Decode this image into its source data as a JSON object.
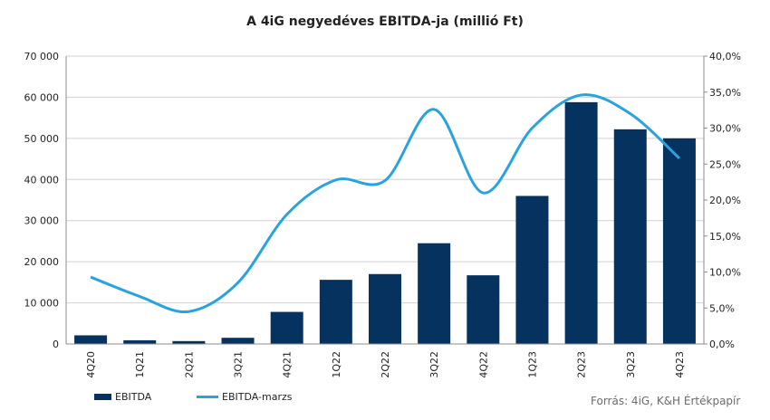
{
  "colors": {
    "bar": "#05325f",
    "line": "#29a3de",
    "grid": "#d0d0d0",
    "axis": "#8c8c8c"
  },
  "title": "A 4iG negyedéves EBITDA-ja (millió Ft)",
  "source": "Forrás: 4iG, K&H Értékpapír",
  "legend": {
    "bar_label": "EBITDA",
    "line_label": "EBITDA-marzs"
  },
  "chart_data": {
    "type": "bar+line",
    "title": "A 4iG negyedéves EBITDA-ja (millió Ft)",
    "categories": [
      "4Q20",
      "1Q21",
      "2Q21",
      "3Q21",
      "4Q21",
      "1Q22",
      "2Q22",
      "3Q22",
      "4Q22",
      "1Q23",
      "2Q23",
      "3Q23",
      "4Q23"
    ],
    "series": [
      {
        "name": "EBITDA",
        "type": "bar",
        "axis": "left",
        "values": [
          2100,
          900,
          700,
          1500,
          7800,
          15600,
          17000,
          24500,
          16700,
          36000,
          58800,
          52200,
          50000
        ]
      },
      {
        "name": "EBITDA-marzs",
        "type": "line",
        "axis": "right",
        "values": [
          9.3,
          6.6,
          4.5,
          8.5,
          18.0,
          22.8,
          22.7,
          32.6,
          21.0,
          30.0,
          34.6,
          32.0,
          25.8
        ]
      }
    ],
    "y_left": {
      "lim": [
        0,
        70000
      ],
      "ticks": [
        "0",
        "10 000",
        "20 000",
        "30 000",
        "40 000",
        "50 000",
        "60 000",
        "70 000"
      ]
    },
    "y_right": {
      "lim": [
        0,
        40
      ],
      "ticks": [
        "0,0%",
        "5,0%",
        "10,0%",
        "15,0%",
        "20,0%",
        "25,0%",
        "30,0%",
        "35,0%",
        "40,0%"
      ]
    },
    "grid": true,
    "legend_position": "bottom-left"
  }
}
